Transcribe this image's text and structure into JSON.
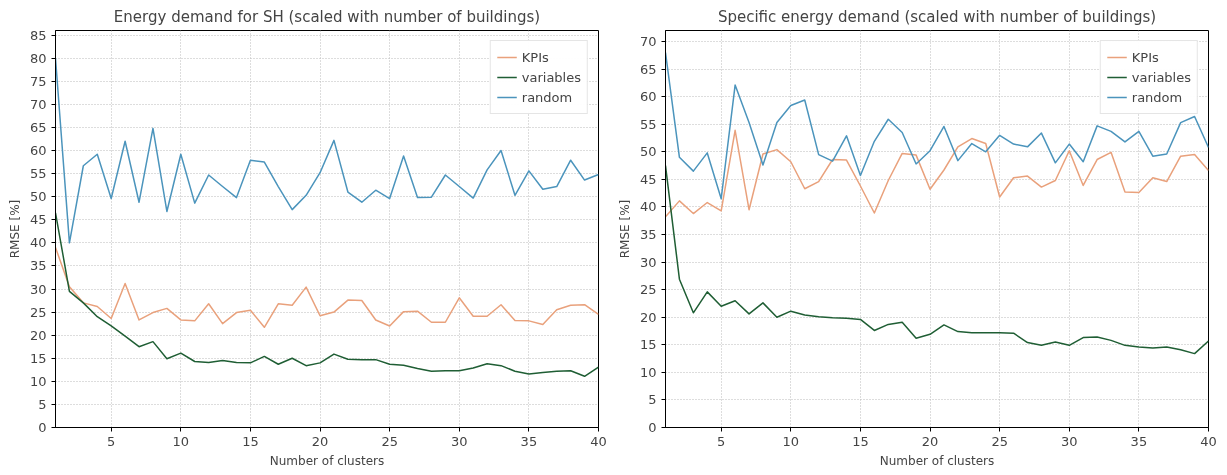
{
  "chart_data": [
    {
      "type": "line",
      "title": "Energy demand for SH (scaled with number of buildings)",
      "xlabel": "Number of clusters",
      "ylabel": "RMSE [%]",
      "x": [
        1,
        2,
        3,
        4,
        5,
        6,
        7,
        8,
        9,
        10,
        11,
        12,
        13,
        14,
        15,
        16,
        17,
        18,
        19,
        20,
        21,
        22,
        23,
        24,
        25,
        26,
        27,
        28,
        29,
        30,
        31,
        32,
        33,
        34,
        35,
        36,
        37,
        38,
        39,
        40
      ],
      "series": [
        {
          "name": "KPIs",
          "color": "#e9a17c",
          "values": [
            39,
            30.5,
            27,
            26.2,
            23.6,
            31.2,
            23.3,
            24.9,
            25.8,
            23.3,
            23.1,
            26.8,
            22.5,
            24.9,
            25.4,
            21.7,
            26.8,
            26.5,
            30.4,
            24.2,
            25,
            27.6,
            27.5,
            23.3,
            22,
            25.1,
            25.2,
            22.8,
            22.8,
            28.1,
            24.1,
            24.1,
            26.6,
            23.2,
            23.1,
            22.3,
            25.5,
            26.5,
            26.6,
            24.5
          ]
        },
        {
          "name": "variables",
          "color": "#1f5e34",
          "values": [
            46.5,
            29.5,
            27,
            24,
            22,
            19.8,
            17.5,
            18.6,
            14.9,
            16.1,
            14.3,
            14.1,
            14.5,
            14.1,
            14,
            15.4,
            13.7,
            15,
            13.4,
            14,
            15.9,
            14.8,
            14.7,
            14.7,
            13.7,
            13.5,
            12.8,
            12.2,
            12.3,
            12.3,
            12.9,
            13.8,
            13.4,
            12.2,
            11.6,
            11.9,
            12.2,
            12.3,
            11.1,
            13.1
          ]
        },
        {
          "name": "random",
          "color": "#4b94bc",
          "values": [
            80,
            40,
            56.7,
            59.2,
            49.6,
            62,
            48.8,
            64.8,
            46.8,
            59.2,
            48.6,
            54.7,
            52.2,
            49.8,
            57.9,
            57.5,
            52.2,
            47.2,
            50.3,
            55.2,
            62.2,
            51,
            48.8,
            51.4,
            49.6,
            58.8,
            49.8,
            49.9,
            54.7,
            52.2,
            49.7,
            55.8,
            60,
            50.3,
            55.6,
            51.6,
            52.2,
            57.9,
            53.6,
            54.8
          ]
        }
      ],
      "xlim": [
        1,
        40
      ],
      "xticks": [
        5,
        10,
        15,
        20,
        25,
        30,
        35,
        40
      ],
      "ylim": [
        0,
        86
      ],
      "yticks": [
        0,
        5,
        10,
        15,
        20,
        25,
        30,
        35,
        40,
        45,
        50,
        55,
        60,
        65,
        70,
        75,
        80,
        85
      ],
      "grid": true,
      "legend": "top right",
      "line_style": "solid"
    },
    {
      "type": "line",
      "title": "Specific energy demand (scaled with number of buildings)",
      "xlabel": "Number of clusters",
      "ylabel": "RMSE [%]",
      "x": [
        1,
        2,
        3,
        4,
        5,
        6,
        7,
        8,
        9,
        10,
        11,
        12,
        13,
        14,
        15,
        16,
        17,
        18,
        19,
        20,
        21,
        22,
        23,
        24,
        25,
        26,
        27,
        28,
        29,
        30,
        31,
        32,
        33,
        34,
        35,
        36,
        37,
        38,
        39,
        40
      ],
      "series": [
        {
          "name": "KPIs",
          "color": "#e9a17c",
          "values": [
            38.2,
            41.1,
            38.8,
            40.8,
            39.3,
            53.9,
            39.5,
            49.6,
            50.4,
            48.2,
            43.3,
            44.6,
            48.6,
            48.5,
            43.8,
            38.9,
            44.8,
            49.7,
            49.4,
            43.2,
            46.7,
            50.9,
            52.4,
            51.5,
            41.8,
            45.3,
            45.6,
            43.6,
            44.8,
            50.2,
            43.9,
            48.6,
            49.9,
            42.7,
            42.6,
            45.3,
            44.6,
            49.2,
            49.5,
            46.6
          ]
        },
        {
          "name": "variables",
          "color": "#1f5e34",
          "values": [
            47.5,
            26.9,
            20.8,
            24.6,
            22,
            23,
            20.6,
            22.6,
            20,
            21.1,
            20.4,
            20.1,
            19.9,
            19.8,
            19.6,
            17.6,
            18.7,
            19.1,
            16.2,
            16.9,
            18.6,
            17.4,
            17.2,
            17.2,
            17.2,
            17.1,
            15.4,
            14.9,
            15.5,
            14.9,
            16.3,
            16.4,
            15.8,
            14.9,
            14.6,
            14.4,
            14.6,
            14.1,
            13.4,
            15.7
          ]
        },
        {
          "name": "random",
          "color": "#4b94bc",
          "values": [
            68,
            49,
            46.5,
            49.8,
            41.5,
            62.1,
            55.3,
            47.6,
            55.3,
            58.4,
            59.4,
            49.5,
            48.3,
            52.9,
            45.7,
            51.9,
            55.9,
            53.5,
            47.8,
            50.2,
            54.6,
            48.4,
            51.5,
            50,
            53,
            51.4,
            50.9,
            53.4,
            48,
            51.4,
            48.2,
            54.7,
            53.7,
            51.8,
            53.7,
            49.2,
            49.6,
            55.3,
            56.4,
            50.8
          ]
        }
      ],
      "xlim": [
        1,
        40
      ],
      "xticks": [
        5,
        10,
        15,
        20,
        25,
        30,
        35,
        40
      ],
      "ylim": [
        0,
        72
      ],
      "yticks": [
        0,
        5,
        10,
        15,
        20,
        25,
        30,
        35,
        40,
        45,
        50,
        55,
        60,
        65,
        70
      ],
      "grid": true,
      "legend": "top right",
      "line_style": "solid"
    }
  ]
}
